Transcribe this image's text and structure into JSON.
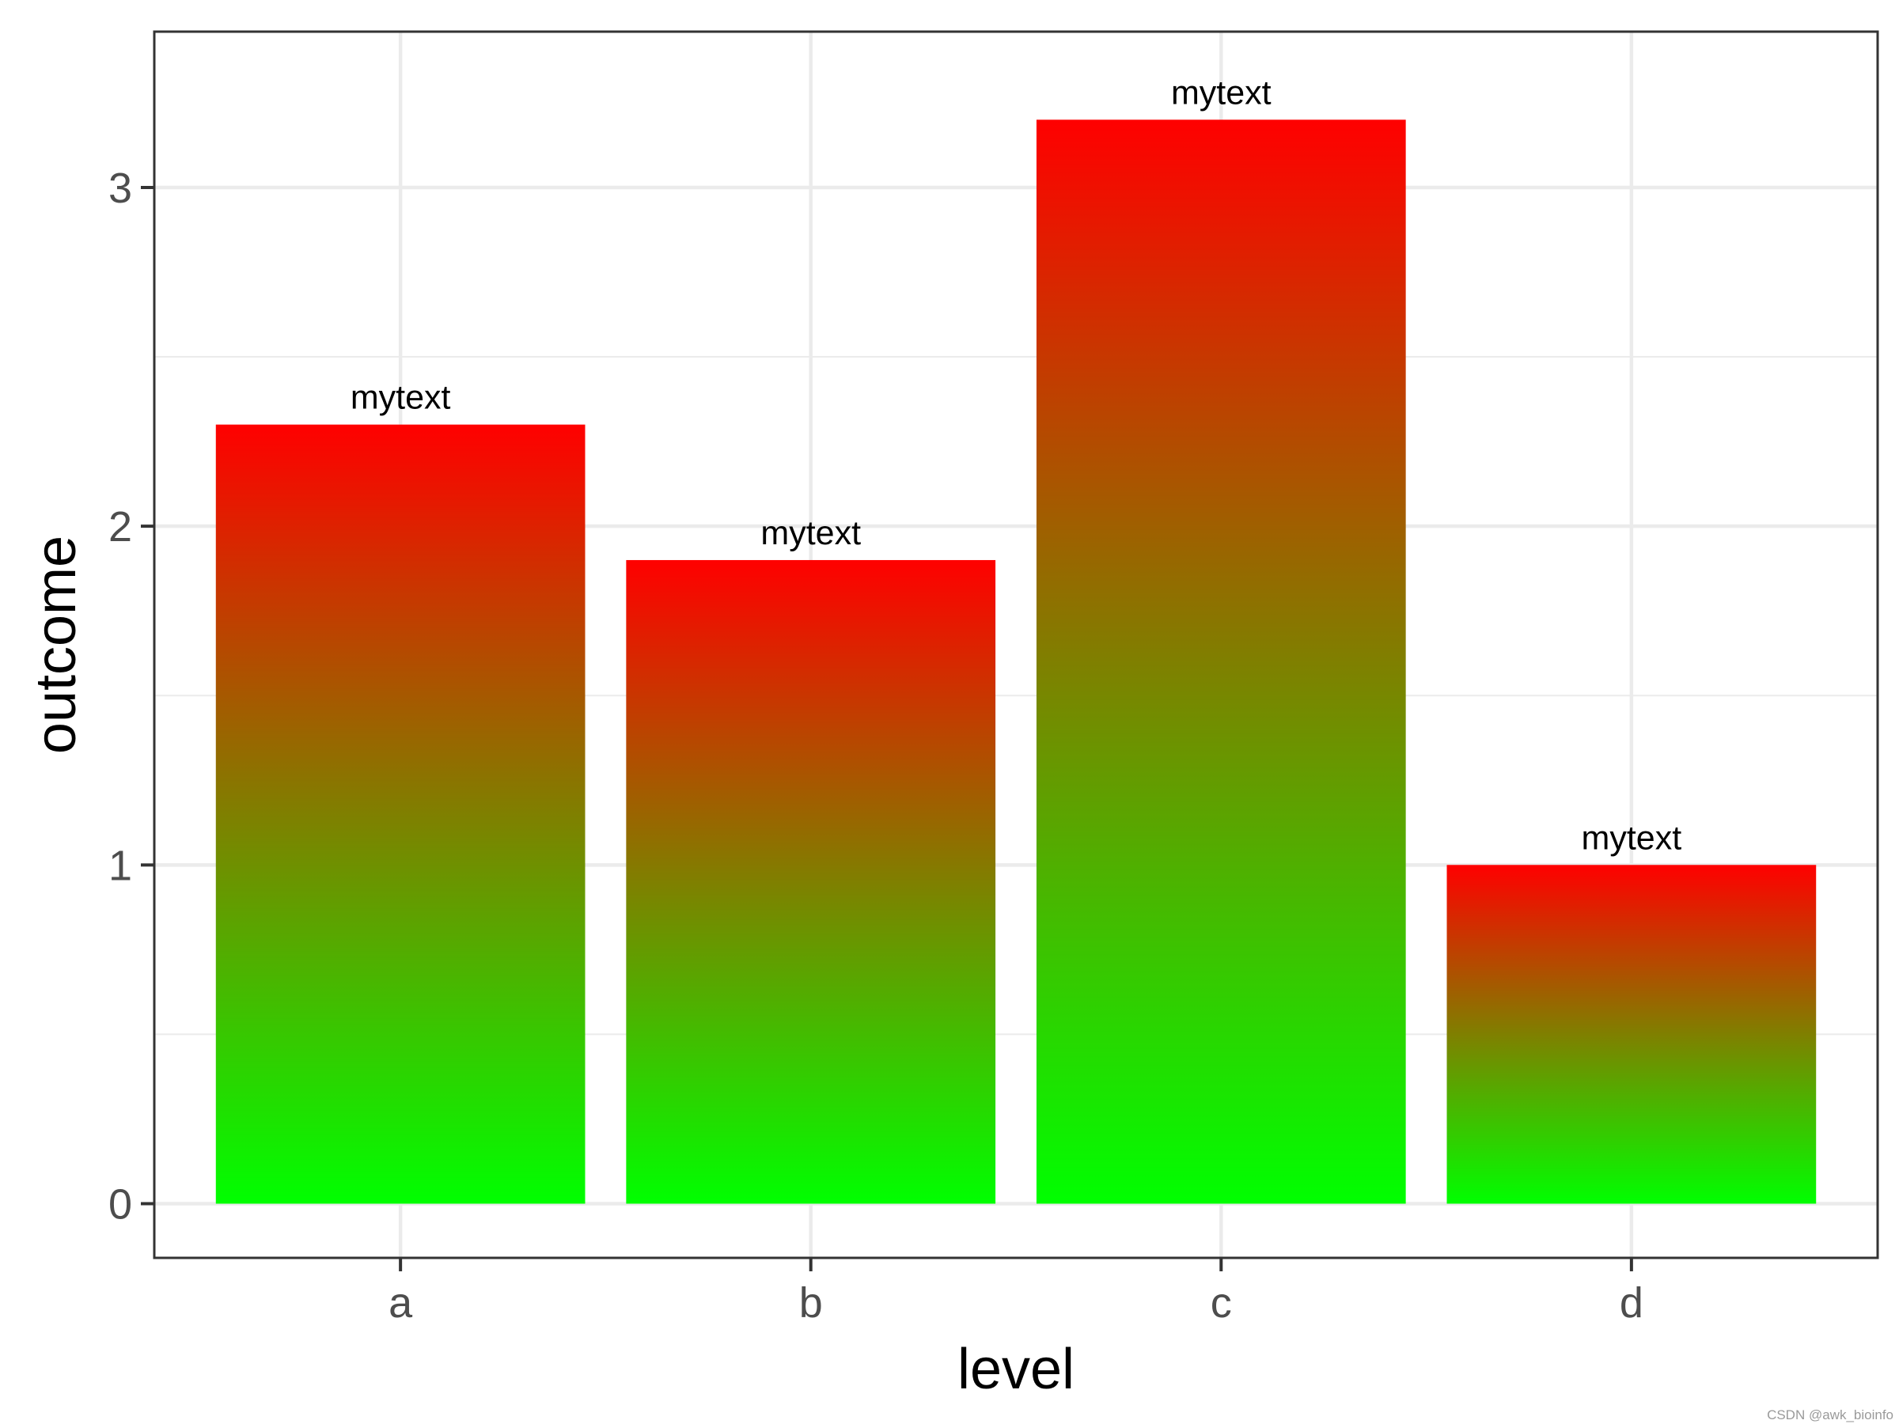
{
  "chart_data": {
    "type": "bar",
    "categories": [
      "a",
      "b",
      "c",
      "d"
    ],
    "values": [
      2.3,
      1.9,
      3.2,
      1.0
    ],
    "bar_labels": [
      "mytext",
      "mytext",
      "mytext",
      "mytext"
    ],
    "xlabel": "level",
    "ylabel": "outcome",
    "yticks": [
      0,
      1,
      2,
      3
    ],
    "ylim": [
      -0.16,
      3.46
    ],
    "grid": true,
    "fill_gradient": {
      "top": "#ff0000",
      "bottom": "#00ff00"
    }
  },
  "watermark": "CSDN @awk_bioinfo"
}
